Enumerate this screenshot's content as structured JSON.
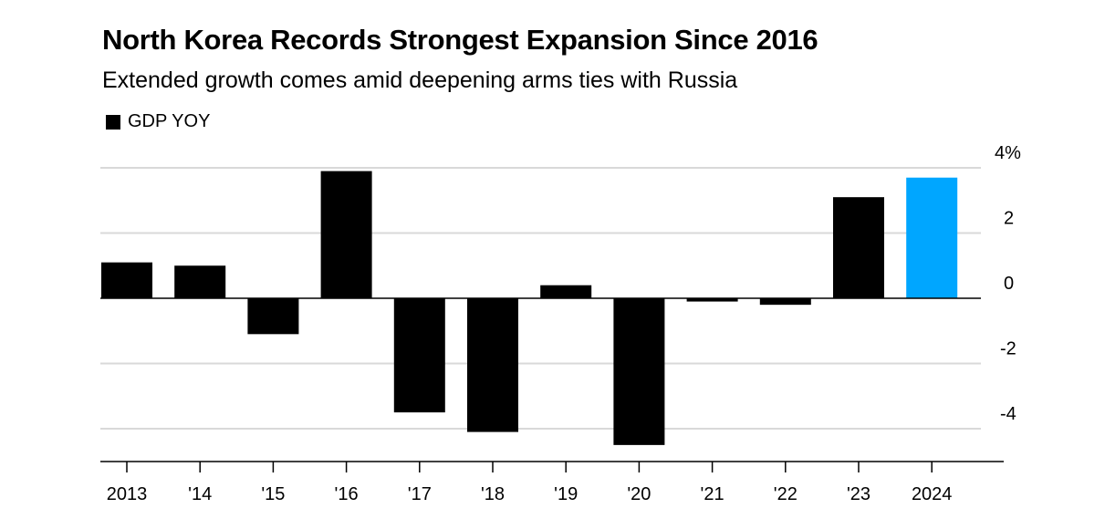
{
  "chart_data": {
    "type": "bar",
    "title": "North Korea Records Strongest Expansion Since 2016",
    "subtitle": "Extended growth comes amid deepening arms ties with Russia",
    "legend": [
      {
        "label": "GDP YOY",
        "color": "#000000"
      }
    ],
    "legend_position": "top-left",
    "categories": [
      "2013",
      "'14",
      "'15",
      "'16",
      "'17",
      "'18",
      "'19",
      "'20",
      "'21",
      "'22",
      "'23",
      "2024"
    ],
    "series": [
      {
        "name": "GDP YOY",
        "values": [
          1.1,
          1.0,
          -1.1,
          3.9,
          -3.5,
          -4.1,
          0.4,
          -4.5,
          -0.1,
          -0.2,
          3.1,
          3.7
        ]
      }
    ],
    "highlight_index": 11,
    "colors": {
      "bar": "#000000",
      "highlight": "#00a6ff",
      "grid": "#d9d9d9",
      "axis": "#000000"
    },
    "y_ticks": [
      {
        "value": 4,
        "label": "4%"
      },
      {
        "value": 2,
        "label": "2"
      },
      {
        "value": 0,
        "label": "0"
      },
      {
        "value": -2,
        "label": "-2"
      },
      {
        "value": -4,
        "label": "-4"
      }
    ],
    "ylim": [
      -4.9,
      4.2
    ],
    "y_axis_position": "right",
    "grid": true
  }
}
